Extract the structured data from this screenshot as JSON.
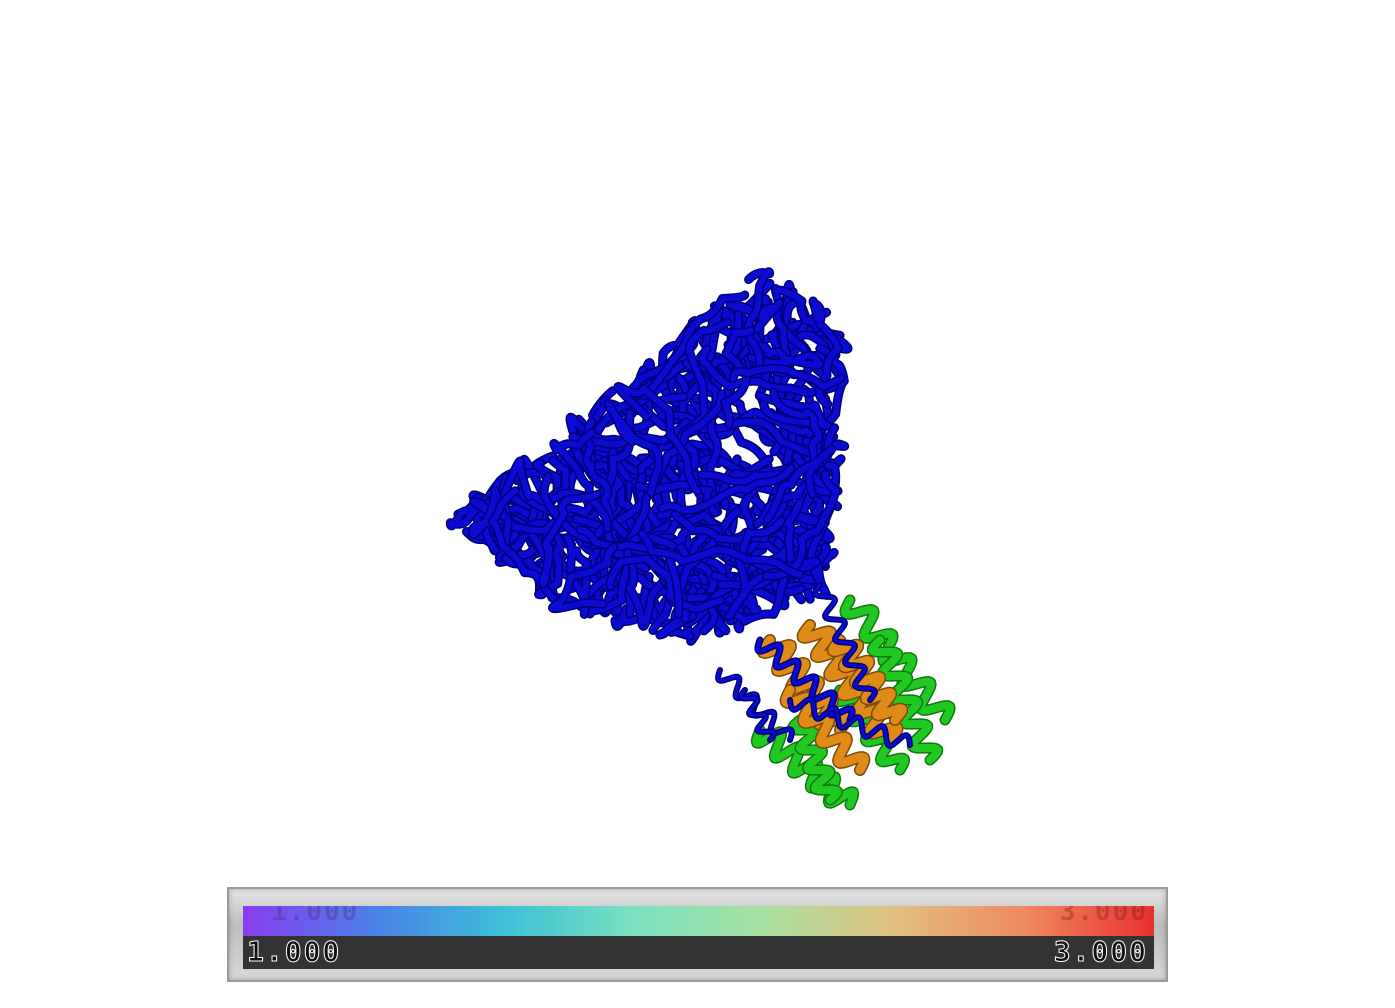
{
  "viewer": {
    "background": "#ffffff",
    "structure_colors": {
      "main_chain": "#0a0ad0",
      "helix_orange": "#e08a18",
      "helix_green": "#22c822"
    }
  },
  "color_scale": {
    "min_label": "1.000",
    "max_label": "3.000",
    "gradient": [
      "#8a3cf0",
      "#4a80e8",
      "#3cc0d8",
      "#7ae0c0",
      "#a8e0a0",
      "#e0c080",
      "#f08a60",
      "#e83030"
    ]
  }
}
